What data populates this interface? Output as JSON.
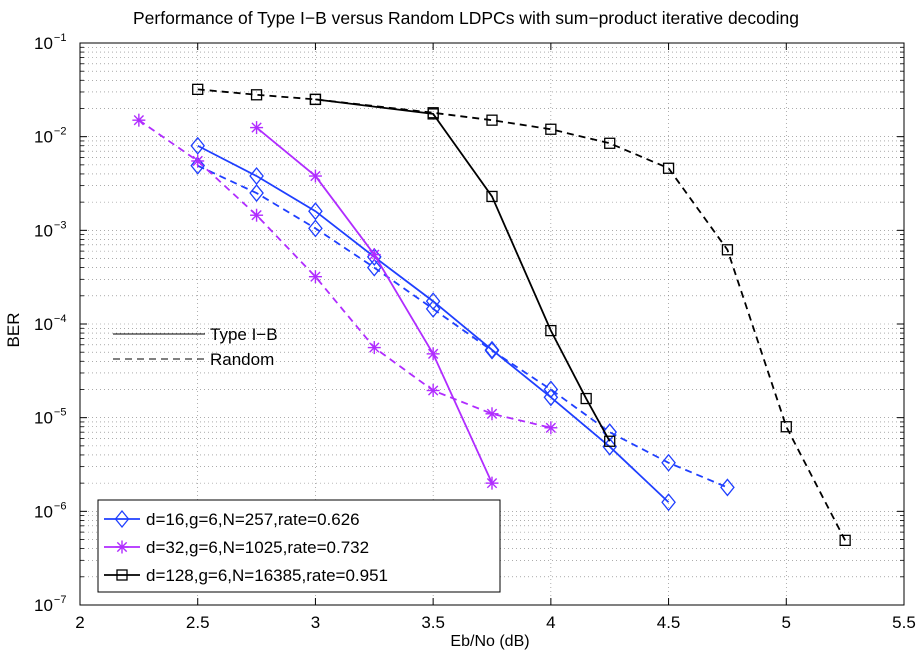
{
  "chart_data": {
    "type": "line",
    "title": "Performance of Type I−B versus Random LDPCs with sum−product iterative decoding",
    "xlabel": "Eb/No (dB)",
    "ylabel": "BER",
    "xscale": "linear",
    "yscale": "log",
    "xlim": [
      2,
      5.5
    ],
    "ylim": [
      1e-07,
      0.1
    ],
    "grid": true,
    "x_ticks": [
      "2",
      "2.5",
      "3",
      "3.5",
      "4",
      "4.5",
      "5",
      "5.5"
    ],
    "y_tick_base": "10",
    "y_tick_exponents": [
      "−7",
      "−6",
      "−5",
      "−4",
      "−3",
      "−2",
      "−1"
    ],
    "legend": {
      "position": "bottom-left",
      "entries": [
        {
          "label": "d=16,g=6,N=257,rate=0.626",
          "color": "#1f3fff",
          "marker": "diamond"
        },
        {
          "label": "d=32,g=6,N=1025,rate=0.732",
          "color": "#b02cff",
          "marker": "star"
        },
        {
          "label": "d=128,g=6,N=16385,rate=0.951",
          "color": "#000000",
          "marker": "square"
        }
      ]
    },
    "style_legend": {
      "position": "middle-left",
      "entries": [
        {
          "label": "Type I−B",
          "dash": "solid"
        },
        {
          "label": "Random",
          "dash": "dashed"
        }
      ]
    },
    "series": [
      {
        "name": "d=16 Type I-B",
        "color": "#1f3fff",
        "marker": "diamond",
        "dash": "solid",
        "x": [
          2.5,
          2.75,
          3.0,
          3.25,
          3.5,
          3.75,
          4.0,
          4.25,
          4.5
        ],
        "y": [
          0.008,
          0.0038,
          0.0016,
          0.00052,
          0.000175,
          5.3e-05,
          1.65e-05,
          4.9e-06,
          1.25e-06
        ]
      },
      {
        "name": "d=16 Random",
        "color": "#1f3fff",
        "marker": "diamond",
        "dash": "dashed",
        "x": [
          2.5,
          2.75,
          3.0,
          3.25,
          3.5,
          3.75,
          4.0,
          4.25,
          4.5,
          4.75
        ],
        "y": [
          0.0049,
          0.0025,
          0.00105,
          0.0004,
          0.000145,
          5.2e-05,
          2e-05,
          7e-06,
          3.3e-06,
          1.8e-06
        ]
      },
      {
        "name": "d=32 Type I-B",
        "color": "#b02cff",
        "marker": "star",
        "dash": "solid",
        "x": [
          2.75,
          3.0,
          3.25,
          3.5,
          3.75
        ],
        "y": [
          0.0125,
          0.0038,
          0.00055,
          4.8e-05,
          2e-06
        ]
      },
      {
        "name": "d=32 Random",
        "color": "#b02cff",
        "marker": "star",
        "dash": "dashed",
        "x": [
          2.25,
          2.5,
          2.75,
          3.0,
          3.25,
          3.5,
          3.75,
          4.0
        ],
        "y": [
          0.015,
          0.0055,
          0.00145,
          0.00032,
          5.6e-05,
          1.95e-05,
          1.1e-05,
          7.8e-06
        ]
      },
      {
        "name": "d=128 Type I-B",
        "color": "#000000",
        "marker": "square",
        "dash": "solid",
        "x": [
          3.0,
          3.5,
          3.75,
          4.0,
          4.15,
          4.25
        ],
        "y": [
          0.025,
          0.0175,
          0.0023,
          8.5e-05,
          1.6e-05,
          5.6e-06
        ]
      },
      {
        "name": "d=128 Random",
        "color": "#000000",
        "marker": "square",
        "dash": "dashed",
        "x": [
          2.5,
          2.75,
          3.0,
          3.5,
          3.75,
          4.0,
          4.25,
          4.5,
          4.75,
          5.0,
          5.25
        ],
        "y": [
          0.032,
          0.028,
          0.025,
          0.018,
          0.015,
          0.012,
          0.0085,
          0.0046,
          0.00062,
          8e-06,
          4.9e-07
        ]
      }
    ]
  }
}
